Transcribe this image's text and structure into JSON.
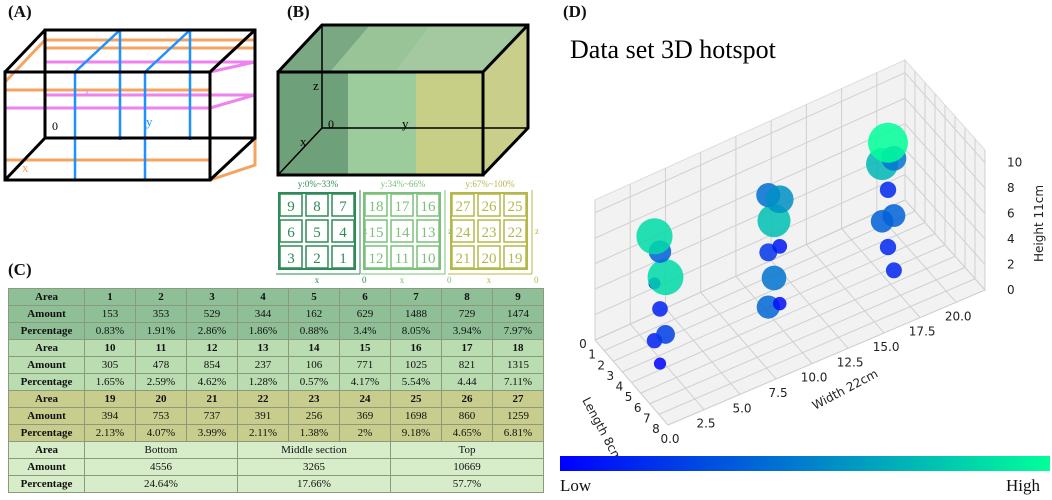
{
  "panels": {
    "a": "(A)",
    "b": "(B)",
    "c": "(C)",
    "d": "(D)"
  },
  "panelA": {
    "labels": {
      "x": "x",
      "y": "y",
      "z": "z",
      "o": "0"
    }
  },
  "panelB": {
    "labels": {
      "x": "x",
      "y": "y",
      "z": "z",
      "o": "0"
    }
  },
  "grids": [
    {
      "title": "y:0%~33%",
      "color": "#2e8b57",
      "rows": [
        [
          "9",
          "8",
          "7"
        ],
        [
          "6",
          "5",
          "4"
        ],
        [
          "3",
          "2",
          "1"
        ]
      ],
      "axis_x": "x",
      "axis_z": "z",
      "origin": "0"
    },
    {
      "title": "y:34%~66%",
      "color": "#7cc07a",
      "rows": [
        [
          "18",
          "17",
          "16"
        ],
        [
          "15",
          "14",
          "13"
        ],
        [
          "12",
          "11",
          "10"
        ]
      ],
      "axis_x": "x",
      "axis_z": "z",
      "origin": "0"
    },
    {
      "title": "y:67%~100%",
      "color": "#b4b84a",
      "rows": [
        [
          "27",
          "26",
          "25"
        ],
        [
          "24",
          "23",
          "22"
        ],
        [
          "21",
          "20",
          "19"
        ]
      ],
      "axis_x": "x",
      "axis_z": "z",
      "origin": "0"
    }
  ],
  "tableC": {
    "groups": [
      {
        "style": "g1",
        "area_label": "Area",
        "areas": [
          "1",
          "2",
          "3",
          "4",
          "5",
          "6",
          "7",
          "8",
          "9"
        ],
        "amount_label": "Amount",
        "amounts": [
          "153",
          "353",
          "529",
          "344",
          "162",
          "629",
          "1488",
          "729",
          "1474"
        ],
        "pct_label": "Percentage",
        "pcts": [
          "0.83%",
          "1.91%",
          "2.86%",
          "1.86%",
          "0.88%",
          "3.4%",
          "8.05%",
          "3.94%",
          "7.97%"
        ]
      },
      {
        "style": "g2",
        "area_label": "Area",
        "areas": [
          "10",
          "11",
          "12",
          "13",
          "14",
          "15",
          "16",
          "17",
          "18"
        ],
        "amount_label": "Amount",
        "amounts": [
          "305",
          "478",
          "854",
          "237",
          "106",
          "771",
          "1025",
          "821",
          "1315"
        ],
        "pct_label": "Percentage",
        "pcts": [
          "1.65%",
          "2.59%",
          "4.62%",
          "1.28%",
          "0.57%",
          "4.17%",
          "5.54%",
          "4.44",
          "7.11%"
        ]
      },
      {
        "style": "g3",
        "area_label": "Area",
        "areas": [
          "19",
          "20",
          "21",
          "22",
          "23",
          "24",
          "25",
          "26",
          "27"
        ],
        "amount_label": "Amount",
        "amounts": [
          "394",
          "753",
          "737",
          "391",
          "256",
          "369",
          "1698",
          "860",
          "1259"
        ],
        "pct_label": "Percentage",
        "pcts": [
          "2.13%",
          "4.07%",
          "3.99%",
          "2.11%",
          "1.38%",
          "2%",
          "9.18%",
          "4.65%",
          "6.81%"
        ]
      }
    ],
    "summary": {
      "area_label": "Area",
      "sections": [
        "Bottom",
        "Middle section",
        "Top"
      ],
      "amount_label": "Amount",
      "amounts": [
        "4556",
        "3265",
        "10669"
      ],
      "pct_label": "Percentage",
      "pcts": [
        "24.64%",
        "17.66%",
        "57.7%"
      ]
    }
  },
  "chart_data": {
    "type": "scatter",
    "title": "Data set 3D hotspot",
    "xlabel": "Length 8cm",
    "ylabel": "Width 22cm",
    "zlabel": "Height 11cm",
    "xlim": [
      0,
      8
    ],
    "ylim": [
      0,
      22
    ],
    "zlim": [
      0,
      11
    ],
    "x_ticks": [
      "0",
      "1",
      "2",
      "3",
      "4",
      "5",
      "6",
      "7",
      "8"
    ],
    "y_ticks": [
      "0.0",
      "2.5",
      "5.0",
      "7.5",
      "10.0",
      "12.5",
      "15.0",
      "17.5",
      "20.0"
    ],
    "z_ticks": [
      "0",
      "2",
      "4",
      "6",
      "8",
      "10"
    ],
    "colorbar": {
      "low": "Low",
      "high": "High",
      "low_color": "#0000ff",
      "high_color": "#00ff99"
    },
    "points": [
      {
        "x": 4,
        "y": 2,
        "z": 9,
        "amount": 1488
      },
      {
        "x": 4,
        "y": 2,
        "z": 7,
        "amount": 729
      },
      {
        "x": 4,
        "y": 2,
        "z": 5,
        "amount": 1474
      },
      {
        "x": 4,
        "y": 2,
        "z": 3,
        "amount": 153
      },
      {
        "x": 4,
        "y": 2,
        "z": 1,
        "amount": 353
      },
      {
        "x": 4,
        "y": 2,
        "z": -1,
        "amount": 529
      },
      {
        "x": 4,
        "y": 2,
        "z": -3,
        "amount": 344
      },
      {
        "x": 4,
        "y": 2,
        "z": -5,
        "amount": 162
      },
      {
        "x": 4,
        "y": 10,
        "z": 9,
        "amount": 1025
      },
      {
        "x": 4,
        "y": 10,
        "z": 7,
        "amount": 821
      },
      {
        "x": 4,
        "y": 10,
        "z": 5,
        "amount": 1315
      },
      {
        "x": 4,
        "y": 10,
        "z": 3,
        "amount": 305
      },
      {
        "x": 4,
        "y": 10,
        "z": 1,
        "amount": 478
      },
      {
        "x": 4,
        "y": 10,
        "z": -1,
        "amount": 854
      },
      {
        "x": 4,
        "y": 10,
        "z": -3,
        "amount": 237
      },
      {
        "x": 4,
        "y": 10,
        "z": -5,
        "amount": 771
      },
      {
        "x": 4,
        "y": 18,
        "z": 9,
        "amount": 1698
      },
      {
        "x": 4,
        "y": 18,
        "z": 7,
        "amount": 860
      },
      {
        "x": 4,
        "y": 18,
        "z": 5,
        "amount": 1259
      },
      {
        "x": 4,
        "y": 18,
        "z": 3,
        "amount": 394
      },
      {
        "x": 4,
        "y": 18,
        "z": 1,
        "amount": 753
      },
      {
        "x": 4,
        "y": 18,
        "z": -1,
        "amount": 737
      },
      {
        "x": 4,
        "y": 18,
        "z": -3,
        "amount": 391
      },
      {
        "x": 4,
        "y": 18,
        "z": -5,
        "amount": 369
      }
    ]
  }
}
